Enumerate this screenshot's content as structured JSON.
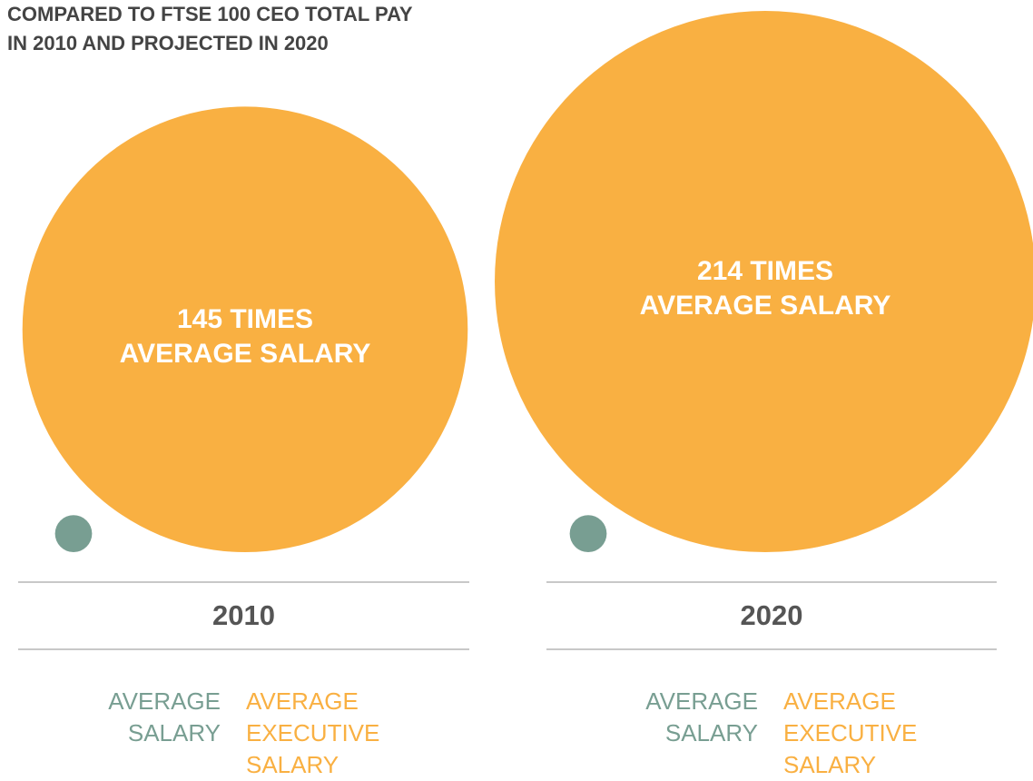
{
  "chart_data": {
    "type": "bubble",
    "title": "COMPARED TO FTSE 100 CEO TOTAL PAY\nIN 2010 AND PROJECTED IN 2020",
    "categories": [
      "2010",
      "2020"
    ],
    "series": [
      {
        "name": "AVERAGE SALARY",
        "color": "#789e92",
        "values": [
          1,
          1
        ]
      },
      {
        "name": "AVERAGE EXECUTIVE SALARY",
        "color": "#f9b042",
        "values": [
          145,
          214
        ],
        "value_labels": [
          "145 TIMES\nAVERAGE SALARY",
          "214 TIMES\nAVERAGE SALARY"
        ]
      }
    ]
  }
}
